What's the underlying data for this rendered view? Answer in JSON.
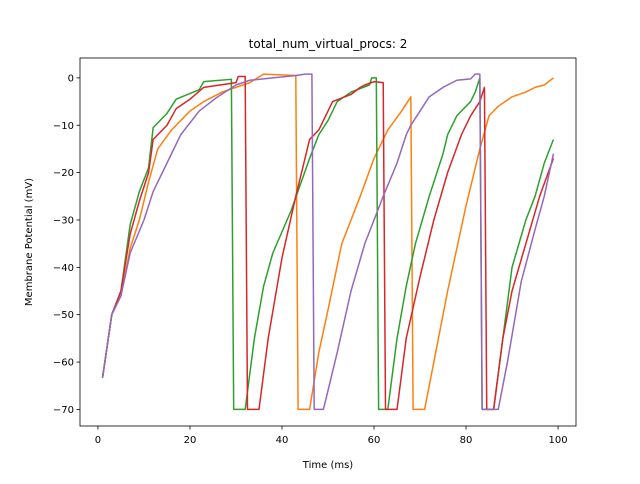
{
  "chart_data": {
    "type": "line",
    "title": "total_num_virtual_procs: 2",
    "x_label": "Time (ms)",
    "y_label": "Membrane Potential (mV)",
    "xlim": [
      -3.9,
      103.9
    ],
    "ylim": [
      -73.5,
      4.2
    ],
    "xticks": [
      0,
      20,
      40,
      60,
      80,
      100
    ],
    "yticks": [
      {
        "value": 0,
        "label": "0"
      },
      {
        "value": -10,
        "label": "−10"
      },
      {
        "value": -20,
        "label": "−20"
      },
      {
        "value": -30,
        "label": "−30"
      },
      {
        "value": -40,
        "label": "−40"
      },
      {
        "value": -50,
        "label": "−50"
      },
      {
        "value": -60,
        "label": "−60"
      },
      {
        "value": -70,
        "label": "−70"
      }
    ],
    "series": [
      {
        "color": "#ff7f0e",
        "x": [
          1,
          3,
          5,
          7,
          9,
          11,
          13,
          16,
          18,
          20,
          23,
          27,
          33,
          36,
          43,
          43.5,
          46,
          48,
          50,
          53,
          57,
          60,
          63,
          66,
          68,
          68.5,
          71,
          73,
          76,
          80,
          83,
          85,
          87,
          90,
          93,
          95,
          97,
          99
        ],
        "values": [
          -63.3,
          -50,
          -46,
          -36,
          -30,
          -22,
          -15,
          -11,
          -9,
          -7,
          -5,
          -3,
          -1,
          0.8,
          0.5,
          -70,
          -70,
          -58,
          -49,
          -35,
          -25,
          -17,
          -11,
          -7,
          -4,
          -70,
          -70,
          -60,
          -45,
          -27,
          -15,
          -8,
          -6,
          -4,
          -3,
          -2,
          -1.5,
          0
        ]
      },
      {
        "color": "#2ca02c",
        "x": [
          1,
          3,
          5,
          7,
          9,
          11,
          12,
          15,
          17,
          22,
          23,
          29,
          29.5,
          32,
          34,
          36,
          38,
          42,
          46,
          48,
          50,
          52,
          55,
          59,
          59.5,
          60.5,
          61,
          63,
          65,
          67,
          69,
          72,
          75,
          76,
          78,
          81,
          82,
          83,
          83.5,
          86,
          88,
          90,
          93,
          95,
          97,
          99
        ],
        "values": [
          -63.3,
          -50,
          -45,
          -31,
          -24,
          -19,
          -10.5,
          -7.5,
          -4.5,
          -2.5,
          -0.8,
          -0.3,
          -70,
          -70,
          -55,
          -44,
          -37,
          -28,
          -17,
          -12,
          -9,
          -5,
          -3,
          -1.5,
          0,
          0,
          -70,
          -70,
          -55,
          -44,
          -35,
          -25,
          -16,
          -12,
          -8,
          -5,
          -3,
          0,
          -70,
          -70,
          -55,
          -40,
          -30,
          -25,
          -18,
          -13
        ]
      },
      {
        "color": "#d62728",
        "x": [
          1,
          3,
          5,
          7,
          9,
          11,
          12,
          15,
          17,
          20,
          23,
          30,
          30.5,
          32,
          32.5,
          35,
          37,
          40,
          43,
          46,
          48,
          51,
          55,
          57,
          58,
          60,
          62,
          62.5,
          65,
          67,
          70,
          73,
          76,
          79,
          81,
          83,
          84,
          84.5,
          86,
          88,
          90,
          93,
          96,
          99
        ],
        "values": [
          -63.3,
          -50,
          -45,
          -33,
          -26,
          -20,
          -13,
          -10,
          -6.5,
          -4.5,
          -2,
          -1,
          0.3,
          0.3,
          -70,
          -70,
          -55,
          -38,
          -25,
          -13,
          -11,
          -5,
          -3.5,
          -2,
          -1.5,
          -0.8,
          -1,
          -70,
          -70,
          -55,
          -42,
          -30,
          -20,
          -12,
          -8,
          -5,
          -2,
          -70,
          -70,
          -55,
          -45,
          -35,
          -25,
          -17
        ]
      },
      {
        "color": "#9467bd",
        "x": [
          1,
          3,
          5,
          7,
          10,
          12,
          15,
          18,
          22,
          26,
          30,
          33,
          38,
          43,
          45,
          46.5,
          47,
          49,
          52,
          55,
          58,
          62,
          65,
          67,
          68,
          70,
          72,
          75,
          78,
          81,
          82,
          83,
          83.5,
          87,
          89,
          92,
          95,
          97,
          99
        ],
        "values": [
          -63.3,
          -50,
          -46,
          -37,
          -30,
          -24,
          -18,
          -12,
          -7,
          -4,
          -1.5,
          -0.5,
          0,
          0.5,
          0.8,
          0.8,
          -70,
          -70,
          -58,
          -45,
          -35,
          -25,
          -18,
          -12,
          -10,
          -7,
          -4,
          -2,
          -0.5,
          -0.2,
          0.8,
          0.8,
          -70,
          -70,
          -60,
          -43,
          -32,
          -25,
          -16
        ]
      }
    ]
  }
}
